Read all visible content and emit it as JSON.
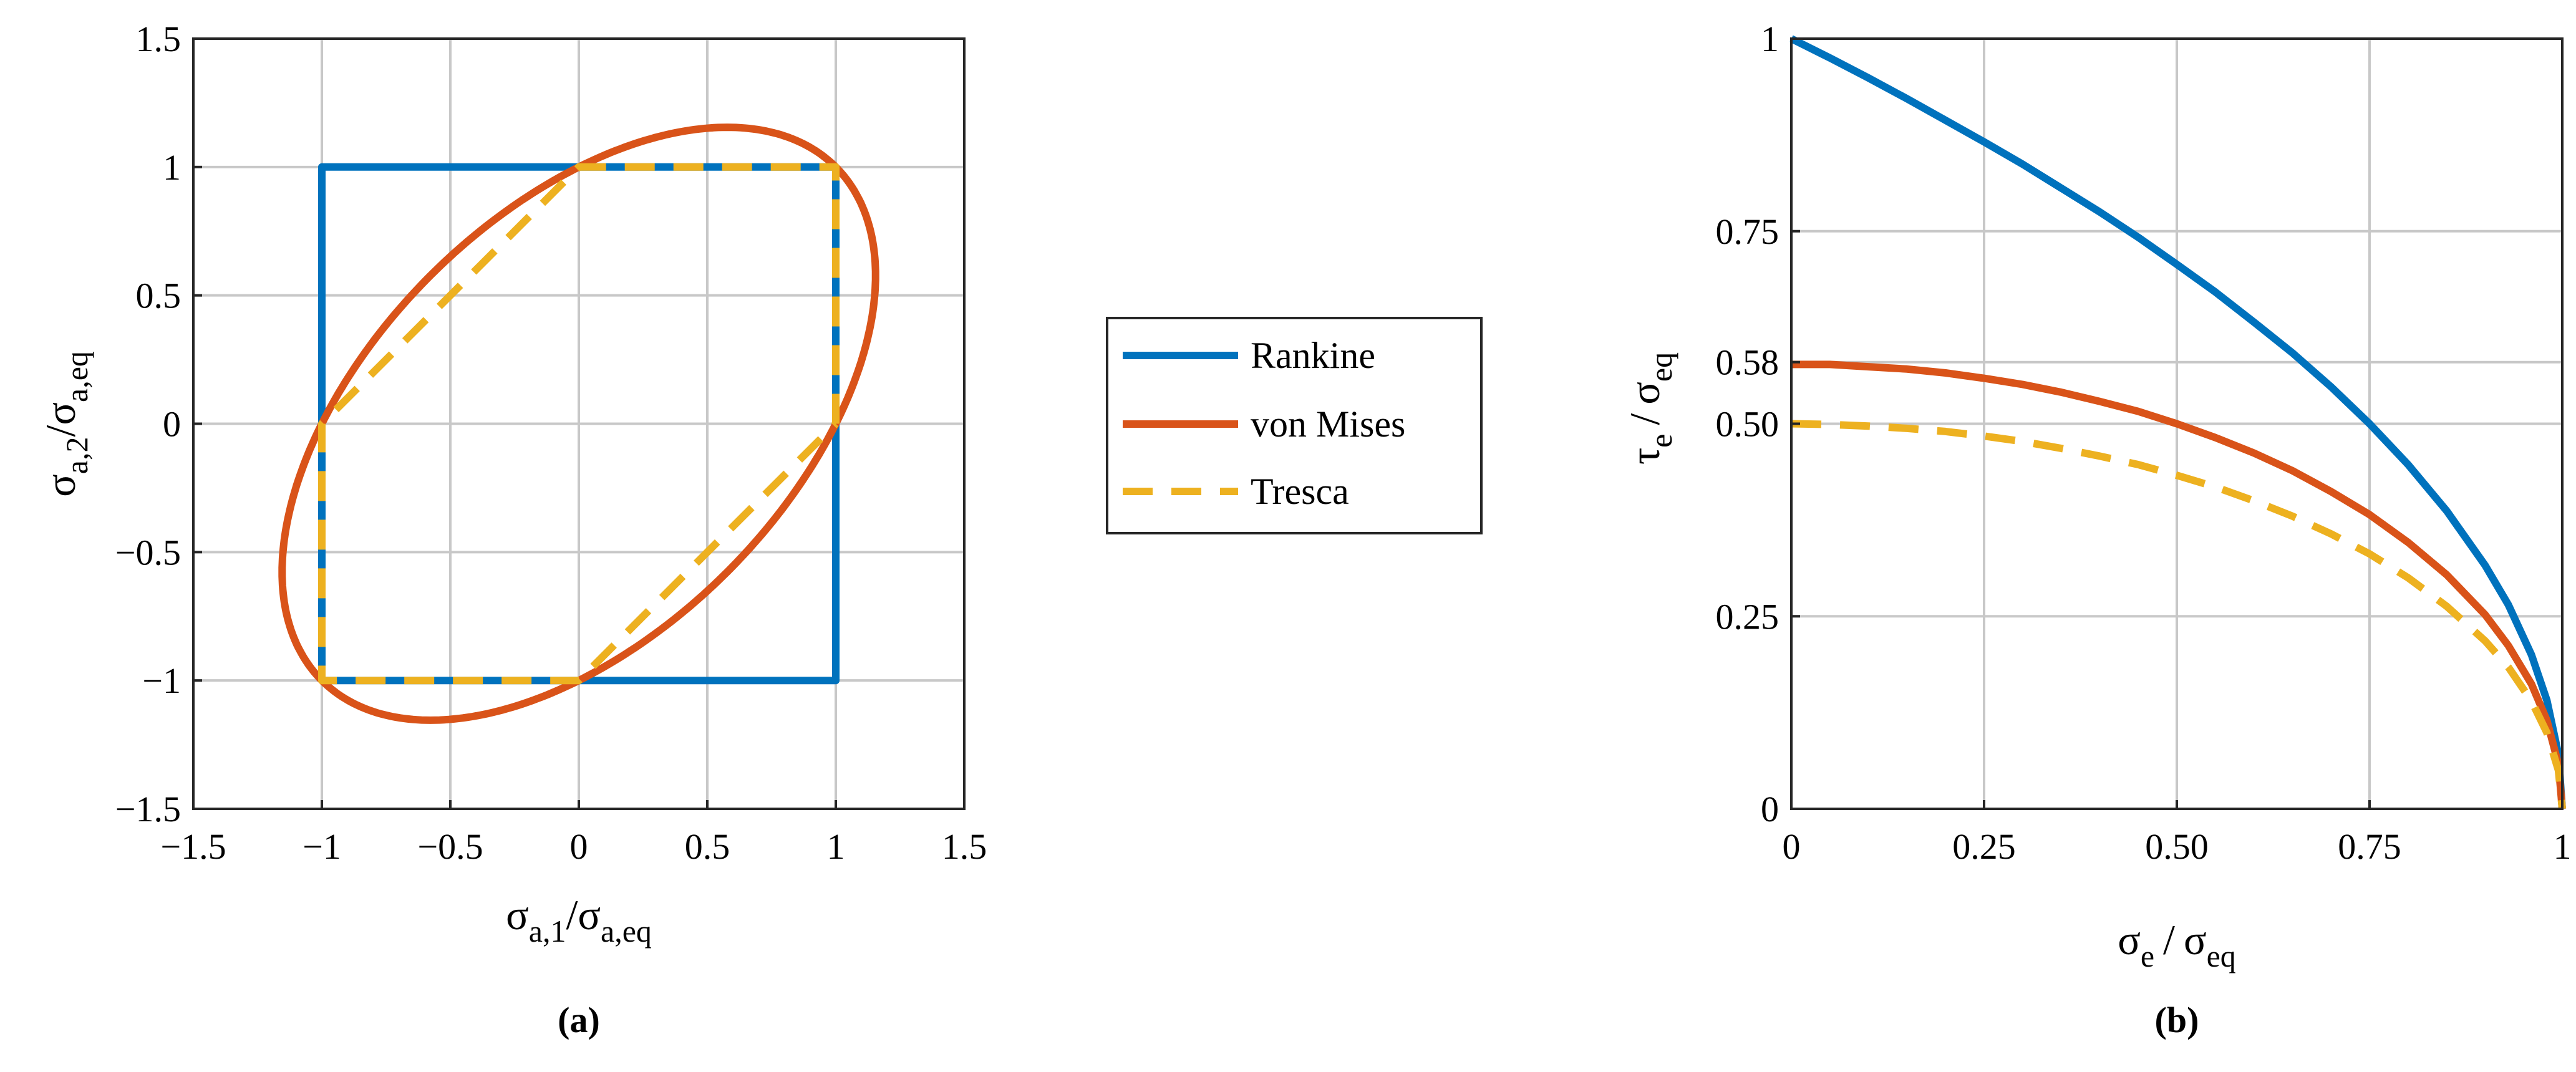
{
  "colors": {
    "rankine": "#0072BD",
    "von_mises": "#D95319",
    "tresca": "#EDB120",
    "grid": "#c8c8c8",
    "axis": "#262626"
  },
  "legend": {
    "entries": [
      "Rankine",
      "von Mises",
      "Tresca"
    ]
  },
  "chart_data": [
    {
      "panel": "(a)",
      "type": "line",
      "xlabel": {
        "symbol": "σ",
        "sub1": "a,1",
        "slash": "/",
        "symbol2": "σ",
        "sub2": "a,eq"
      },
      "ylabel": {
        "symbol": "σ",
        "sub1": "a,2",
        "slash": "/",
        "symbol2": "σ",
        "sub2": "a,eq"
      },
      "xlim": [
        -1.5,
        1.5
      ],
      "ylim": [
        -1.5,
        1.5
      ],
      "xticks": [
        -1.5,
        -1,
        -0.5,
        0,
        0.5,
        1,
        1.5
      ],
      "yticks": [
        -1.5,
        -1,
        -0.5,
        0,
        0.5,
        1,
        1.5
      ],
      "xtick_labels": [
        "−1.5",
        "−1",
        "−0.5",
        "0",
        "0.5",
        "1",
        "1.5"
      ],
      "ytick_labels": [
        "−1.5",
        "−1",
        "−0.5",
        "0",
        "0.5",
        "1",
        "1.5"
      ],
      "grid": true,
      "series": [
        {
          "name": "Rankine",
          "style": "solid",
          "x": [
            -1,
            1,
            1,
            -1,
            -1
          ],
          "y": [
            -1,
            -1,
            1,
            1,
            -1
          ]
        },
        {
          "name": "von Mises",
          "style": "solid",
          "x": [
            1.155,
            1.121,
            1.02,
            0.86,
            0.649,
            0.401,
            0.132,
            -0.141,
            -0.401,
            -0.635,
            -0.827,
            -0.966,
            -1.043,
            -1.054,
            -1.0,
            -0.885,
            -0.719,
            -0.514,
            -0.287,
            -0.057,
            0.159,
            0.357,
            0.542,
            0.714,
            0.868,
            0.994,
            1.085,
            1.143,
            1.155
          ],
          "y": [
            0.577,
            0.717,
            0.845,
            0.952,
            1.031,
            1.076,
            1.083,
            1.052,
            0.984,
            0.883,
            0.754,
            0.602,
            0.432,
            0.251,
            0.066,
            -0.114,
            -0.281,
            -0.426,
            -0.539,
            -0.617,
            -0.658,
            -0.664,
            -0.634,
            -0.571,
            -0.477,
            -0.355,
            -0.208,
            -0.04,
            0.577
          ]
        },
        {
          "name": "Tresca",
          "style": "dashed",
          "x": [
            1,
            1,
            0,
            -1,
            -1,
            0,
            1
          ],
          "y": [
            0,
            1,
            1,
            0,
            -1,
            -1,
            0
          ]
        }
      ]
    },
    {
      "panel": "(b)",
      "type": "line",
      "xlabel": {
        "symbol": "σ",
        "sub1": "e",
        "slash": "/",
        "symbol2": "σ",
        "sub2": "eq"
      },
      "ylabel": {
        "symbol": "τ",
        "sub1": "e",
        "slash": "/",
        "symbol2": "σ",
        "sub2": "eq"
      },
      "xlim": [
        0,
        1
      ],
      "ylim": [
        0,
        1
      ],
      "xticks": [
        0,
        0.25,
        0.5,
        0.75,
        1
      ],
      "yticks": [
        0,
        0.25,
        0.5,
        0.58,
        0.75,
        1
      ],
      "xtick_labels": [
        "0",
        "0.25",
        "0.50",
        "0.75",
        "1"
      ],
      "ytick_labels": [
        "0",
        "0.25",
        "0.50",
        "0.58",
        "0.75",
        "1"
      ],
      "grid": true,
      "series": [
        {
          "name": "Rankine",
          "style": "solid",
          "x": [
            0,
            0.05,
            0.1,
            0.15,
            0.2,
            0.25,
            0.3,
            0.35,
            0.4,
            0.45,
            0.5,
            0.55,
            0.6,
            0.65,
            0.7,
            0.75,
            0.8,
            0.85,
            0.9,
            0.93,
            0.96,
            0.98,
            0.995,
            1
          ],
          "y": [
            1,
            0.975,
            0.949,
            0.922,
            0.894,
            0.866,
            0.837,
            0.806,
            0.775,
            0.742,
            0.707,
            0.671,
            0.632,
            0.592,
            0.548,
            0.5,
            0.447,
            0.387,
            0.316,
            0.265,
            0.2,
            0.141,
            0.071,
            0
          ]
        },
        {
          "name": "von Mises",
          "style": "solid",
          "x": [
            0,
            0.05,
            0.1,
            0.15,
            0.2,
            0.25,
            0.3,
            0.35,
            0.4,
            0.45,
            0.5,
            0.55,
            0.6,
            0.65,
            0.7,
            0.75,
            0.8,
            0.85,
            0.9,
            0.93,
            0.96,
            0.98,
            0.995,
            1
          ],
          "y": [
            0.577,
            0.577,
            0.574,
            0.571,
            0.566,
            0.559,
            0.551,
            0.541,
            0.529,
            0.516,
            0.5,
            0.482,
            0.462,
            0.439,
            0.412,
            0.382,
            0.346,
            0.304,
            0.252,
            0.212,
            0.162,
            0.115,
            0.058,
            0
          ]
        },
        {
          "name": "Tresca",
          "style": "dashed",
          "x": [
            0,
            0.05,
            0.1,
            0.15,
            0.2,
            0.25,
            0.3,
            0.35,
            0.4,
            0.45,
            0.5,
            0.55,
            0.6,
            0.65,
            0.7,
            0.75,
            0.8,
            0.85,
            0.9,
            0.93,
            0.96,
            0.98,
            0.995,
            1
          ],
          "y": [
            0.5,
            0.499,
            0.497,
            0.494,
            0.49,
            0.484,
            0.477,
            0.468,
            0.458,
            0.447,
            0.433,
            0.418,
            0.4,
            0.38,
            0.357,
            0.331,
            0.3,
            0.263,
            0.218,
            0.184,
            0.14,
            0.099,
            0.05,
            0
          ]
        }
      ]
    }
  ]
}
